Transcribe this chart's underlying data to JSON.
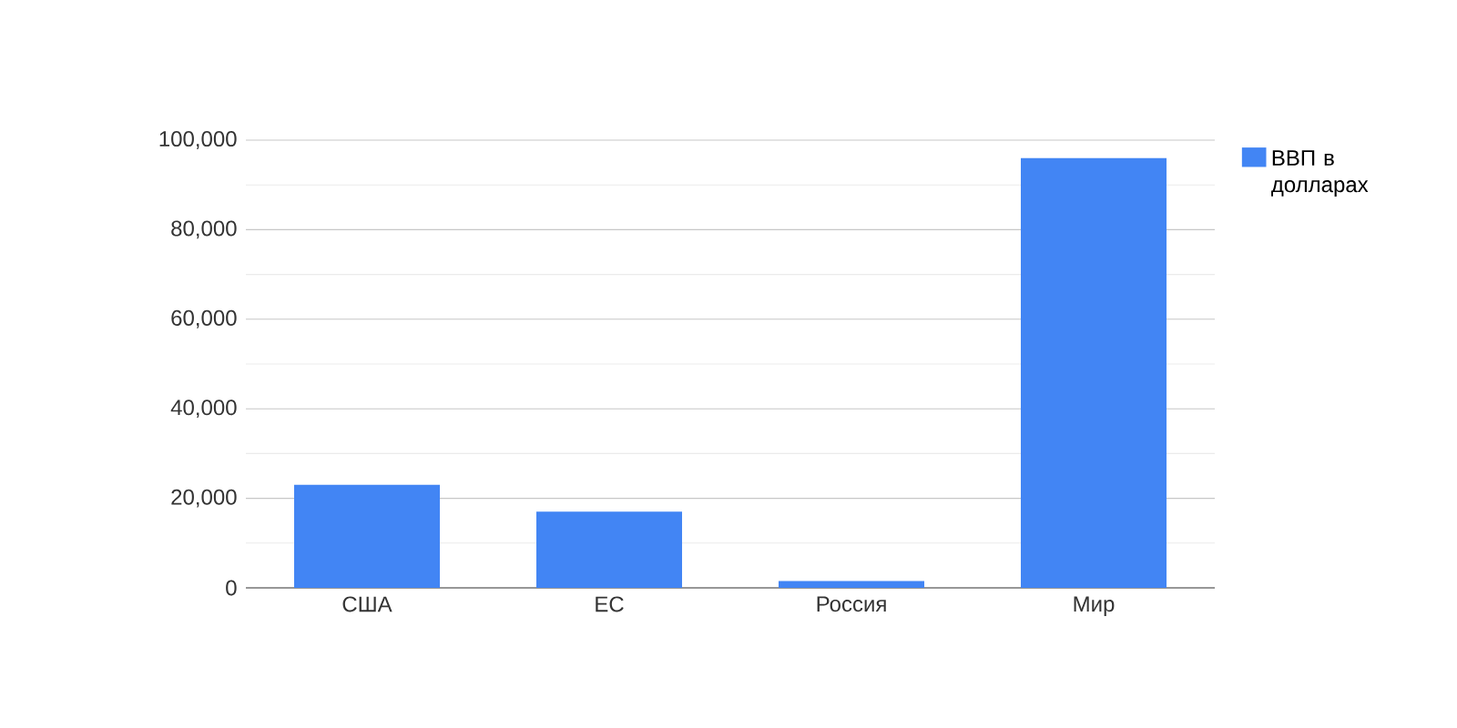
{
  "chart_data": {
    "type": "bar",
    "categories": [
      "США",
      "ЕС",
      "Россия",
      "Мир"
    ],
    "series": [
      {
        "name": "ВВП в долларах",
        "color": "#4285f4",
        "values": [
          23000,
          17000,
          1500,
          96000
        ]
      }
    ],
    "ylim": [
      0,
      100000
    ],
    "yticks": [
      {
        "value": 0,
        "label": "0"
      },
      {
        "value": 20000,
        "label": "20,000"
      },
      {
        "value": 40000,
        "label": "40,000"
      },
      {
        "value": 60000,
        "label": "60,000"
      },
      {
        "value": 80000,
        "label": "80,000"
      },
      {
        "value": 100000,
        "label": "100,000"
      }
    ],
    "grid": "y",
    "legend": "top right"
  }
}
